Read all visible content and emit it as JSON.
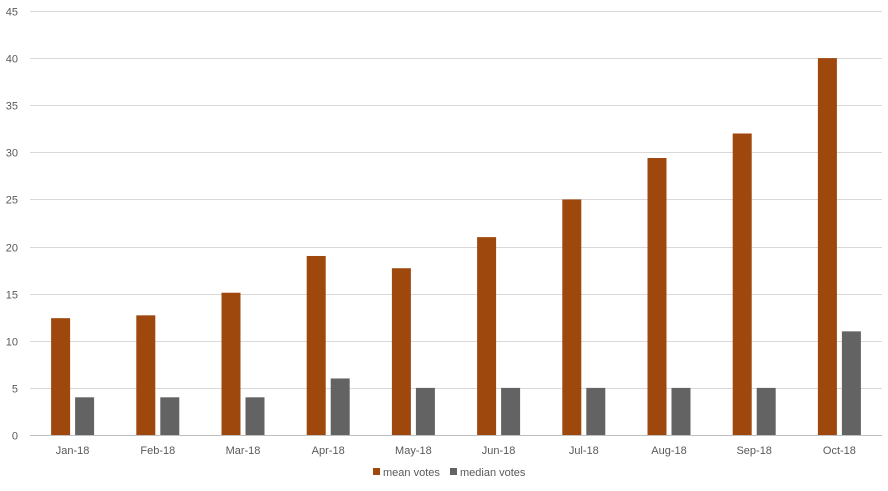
{
  "chart_data": {
    "type": "bar",
    "categories": [
      "Jan-18",
      "Feb-18",
      "Mar-18",
      "Apr-18",
      "May-18",
      "Jun-18",
      "Jul-18",
      "Aug-18",
      "Sep-18",
      "Oct-18"
    ],
    "series": [
      {
        "name": "mean votes",
        "color": "#9e480e",
        "values": [
          12.4,
          12.7,
          15.1,
          19.0,
          17.7,
          21.0,
          25.0,
          29.4,
          32.0,
          40.0
        ]
      },
      {
        "name": "median votes",
        "color": "#636363",
        "values": [
          4,
          4,
          4,
          6,
          5,
          5,
          5,
          5,
          5,
          11
        ]
      }
    ],
    "ylim": [
      0,
      45
    ],
    "yticks": [
      0,
      5,
      10,
      15,
      20,
      25,
      30,
      35,
      40,
      45
    ],
    "grid": true,
    "legend": "bottom-center"
  }
}
